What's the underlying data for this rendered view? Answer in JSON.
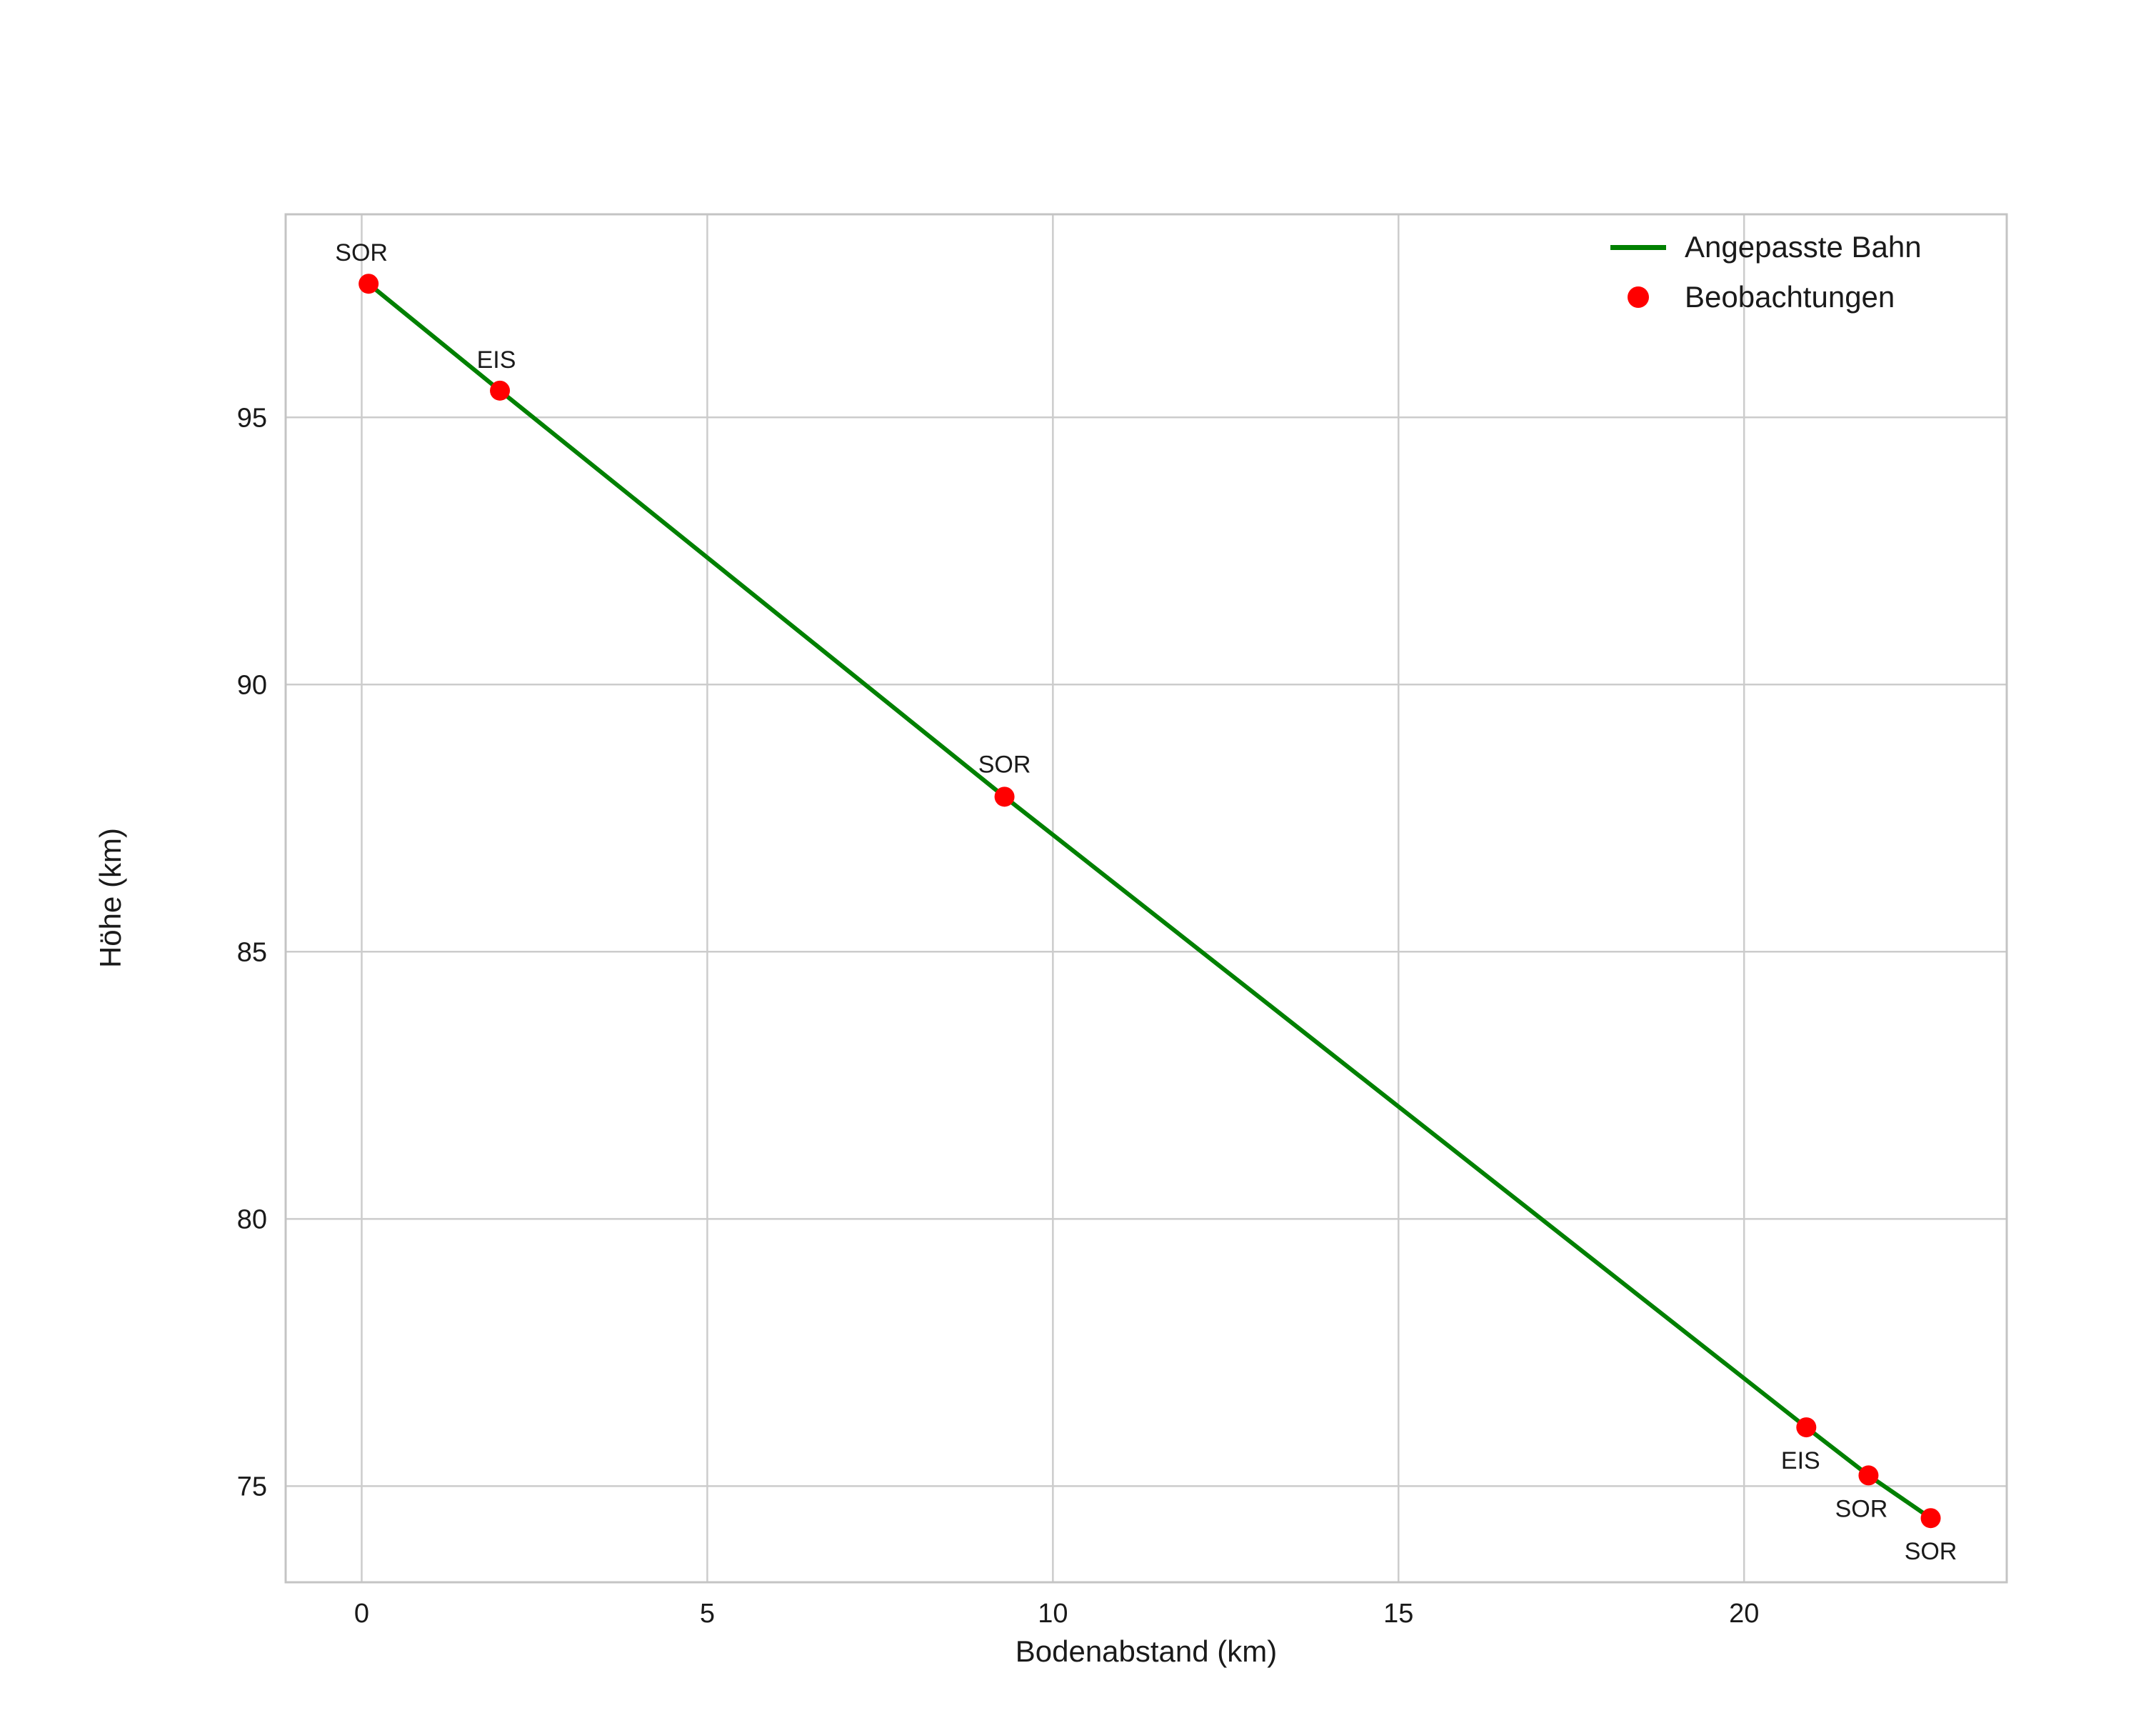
{
  "chart_data": {
    "type": "scatter",
    "title": "",
    "xlabel": "Bodenabstand (km)",
    "ylabel": "Höhe (km)",
    "xlim": [
      -1.1,
      23.8
    ],
    "ylim": [
      73.2,
      98.8
    ],
    "xticks": [
      0,
      5,
      10,
      15,
      20
    ],
    "yticks": [
      75,
      80,
      85,
      90,
      95
    ],
    "grid": true,
    "colors": {
      "line": "#008000",
      "points": "#ff0000",
      "grid": "#cccccc",
      "frame": "#c4c4c4",
      "text": "#1a1a1a"
    },
    "legend": {
      "position": "top-right",
      "entries": [
        {
          "label": "Angepasste Bahn",
          "type": "line",
          "color": "#008000"
        },
        {
          "label": "Beobachtungen",
          "type": "dot",
          "color": "#ff0000"
        }
      ]
    },
    "series": [
      {
        "name": "Angepasste Bahn",
        "type": "line",
        "color": "#008000",
        "points": [
          [
            0.1,
            97.5
          ],
          [
            2.0,
            95.5
          ],
          [
            9.3,
            87.9
          ],
          [
            20.9,
            76.1
          ],
          [
            21.8,
            75.2
          ],
          [
            22.7,
            74.4
          ]
        ]
      },
      {
        "name": "Beobachtungen",
        "type": "scatter",
        "color": "#ff0000",
        "points": [
          {
            "x": 0.1,
            "y": 97.5,
            "label": "SOR",
            "dx": -10,
            "dy": -32
          },
          {
            "x": 2.0,
            "y": 95.5,
            "label": "EIS",
            "dx": -5,
            "dy": -32
          },
          {
            "x": 9.3,
            "y": 87.9,
            "label": "SOR",
            "dx": 0,
            "dy": -34
          },
          {
            "x": 20.9,
            "y": 76.1,
            "label": "EIS",
            "dx": -8,
            "dy": 58
          },
          {
            "x": 21.8,
            "y": 75.2,
            "label": "SOR",
            "dx": -10,
            "dy": 58
          },
          {
            "x": 22.7,
            "y": 74.4,
            "label": "SOR",
            "dx": 0,
            "dy": 58
          }
        ]
      }
    ],
    "annotation_font_size": 34,
    "tick_font_size": 38
  }
}
